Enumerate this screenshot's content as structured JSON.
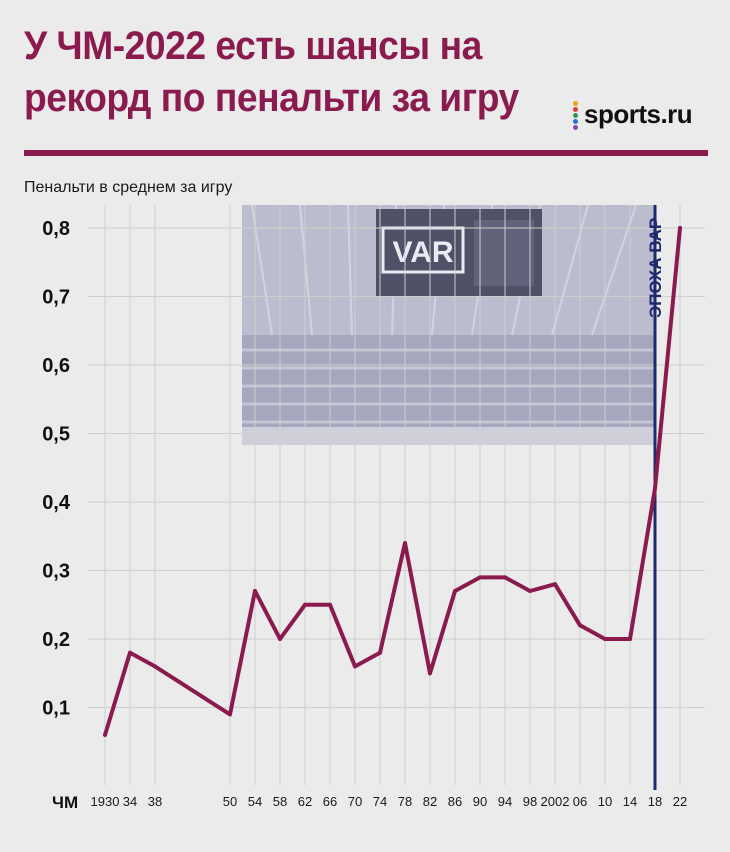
{
  "header": {
    "title": "У ЧМ-2022 есть шансы на рекорд по пенальти за игру",
    "logo_text": "sports.ru",
    "accent_color": "#8b1a4f"
  },
  "chart_data": {
    "type": "line",
    "ylabel": "Пенальти в среднем за игру",
    "x_axis_prefix": "ЧМ",
    "categories": [
      "1930",
      "34",
      "38",
      "50",
      "54",
      "58",
      "62",
      "66",
      "70",
      "74",
      "78",
      "82",
      "86",
      "90",
      "94",
      "98",
      "2002",
      "06",
      "10",
      "14",
      "18",
      "22"
    ],
    "x": [
      1930,
      1934,
      1938,
      1950,
      1954,
      1958,
      1962,
      1966,
      1970,
      1974,
      1978,
      1982,
      1986,
      1990,
      1994,
      1998,
      2002,
      2006,
      2010,
      2014,
      2018,
      2022
    ],
    "series": [
      {
        "color": "#8b1a4f",
        "values": [
          0.06,
          0.18,
          0.16,
          0.09,
          0.27,
          0.2,
          0.25,
          0.25,
          0.16,
          0.18,
          0.34,
          0.15,
          0.27,
          0.29,
          0.29,
          0.27,
          0.28,
          0.22,
          0.2,
          0.2,
          0.42,
          0.8
        ]
      }
    ],
    "yticks": [
      "0,1",
      "0,2",
      "0,3",
      "0,4",
      "0,5",
      "0,6",
      "0,7",
      "0,8"
    ],
    "ylim": [
      0,
      0.8
    ],
    "xlim": [
      1930,
      2022
    ],
    "grid": true,
    "annotation": {
      "text": "ЭПОХА ВАР",
      "x": 2018,
      "color": "#1e2a6e"
    },
    "background_image": {
      "icon": "var-stadium-screen-photo",
      "text": "VAR"
    }
  }
}
